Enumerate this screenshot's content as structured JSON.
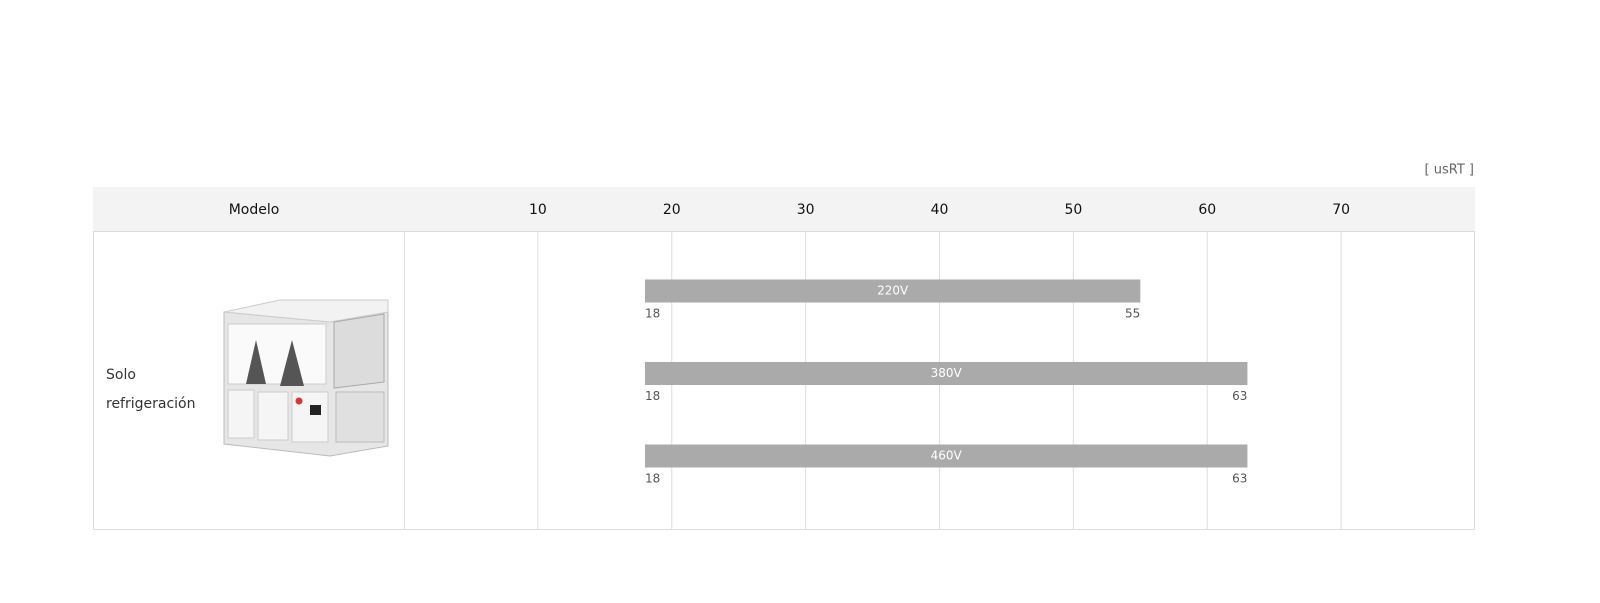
{
  "chart_data": {
    "type": "range-bar",
    "unit": "[ usRT ]",
    "column_header": "Modelo",
    "model": "Solo refrigeración",
    "xlim": [
      0,
      80
    ],
    "xticks": [
      10,
      20,
      30,
      40,
      50,
      60,
      70
    ],
    "grid": true,
    "color": "#aaaaaa",
    "series": [
      {
        "name": "220V",
        "values": [
          18,
          55
        ]
      },
      {
        "name": "380V",
        "values": [
          18,
          63
        ]
      },
      {
        "name": "460V",
        "values": [
          18,
          63
        ]
      }
    ]
  }
}
